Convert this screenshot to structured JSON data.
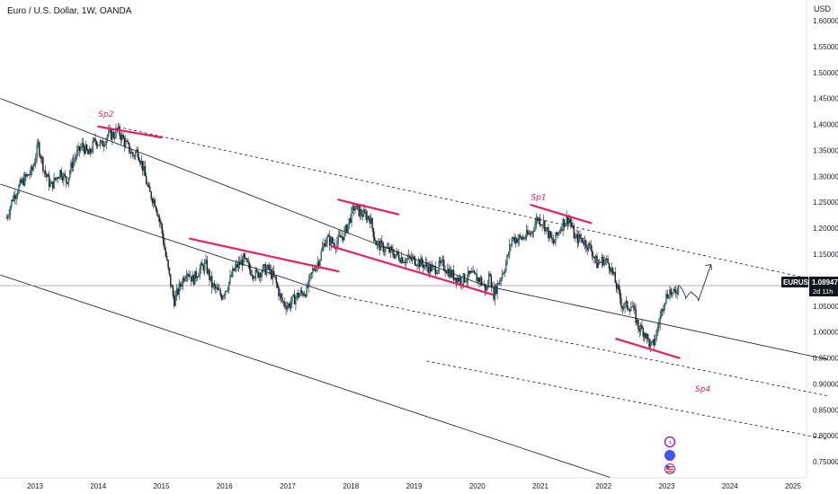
{
  "header": {
    "title": "Euro / U.S. Dollar, 1W, OANDA",
    "unit": "USD"
  },
  "colors": {
    "up": "#131722",
    "down": "#131722",
    "accent": "#e91e63",
    "channel": "#131722"
  },
  "price_tag": {
    "symbol": "EURUSD",
    "value": "1.08947",
    "countdown": "2d 11h"
  },
  "event_icons": [
    "lightning-icon",
    "blue-globe-icon",
    "us-flag-icon"
  ],
  "chart_data": {
    "type": "candlestick",
    "symbol": "EURUSD",
    "interval": "1W",
    "source": "OANDA",
    "y_ticks": [
      "1.60000",
      "1.55000",
      "1.50000",
      "1.45000",
      "1.40000",
      "1.35000",
      "1.30000",
      "1.25000",
      "1.20000",
      "1.15000",
      "1.10000",
      "1.05000",
      "1.00000",
      "0.95000",
      "0.90000",
      "0.85000",
      "0.80000",
      "0.75000"
    ],
    "ylim": [
      0.72,
      1.62
    ],
    "x_ticks": [
      "2013",
      "2014",
      "2015",
      "2016",
      "2017",
      "2018",
      "2019",
      "2020",
      "2021",
      "2022",
      "2023",
      "2024",
      "2025"
    ],
    "xlim": [
      2012.45,
      2025.55
    ],
    "current_price": 1.08947,
    "price_path": [
      [
        2012.55,
        1.22
      ],
      [
        2012.65,
        1.26
      ],
      [
        2012.8,
        1.29
      ],
      [
        2012.95,
        1.31
      ],
      [
        2013.05,
        1.36
      ],
      [
        2013.15,
        1.31
      ],
      [
        2013.25,
        1.28
      ],
      [
        2013.4,
        1.31
      ],
      [
        2013.5,
        1.29
      ],
      [
        2013.6,
        1.33
      ],
      [
        2013.75,
        1.36
      ],
      [
        2013.85,
        1.34
      ],
      [
        2013.95,
        1.37
      ],
      [
        2014.05,
        1.36
      ],
      [
        2014.15,
        1.38
      ],
      [
        2014.25,
        1.38
      ],
      [
        2014.3,
        1.39
      ],
      [
        2014.45,
        1.36
      ],
      [
        2014.55,
        1.34
      ],
      [
        2014.62,
        1.35
      ],
      [
        2014.7,
        1.32
      ],
      [
        2014.8,
        1.27
      ],
      [
        2014.9,
        1.25
      ],
      [
        2015.0,
        1.2
      ],
      [
        2015.05,
        1.16
      ],
      [
        2015.12,
        1.11
      ],
      [
        2015.2,
        1.06
      ],
      [
        2015.3,
        1.09
      ],
      [
        2015.4,
        1.12
      ],
      [
        2015.5,
        1.1
      ],
      [
        2015.6,
        1.12
      ],
      [
        2015.7,
        1.13
      ],
      [
        2015.8,
        1.09
      ],
      [
        2015.95,
        1.07
      ],
      [
        2016.05,
        1.09
      ],
      [
        2016.15,
        1.12
      ],
      [
        2016.3,
        1.14
      ],
      [
        2016.4,
        1.12
      ],
      [
        2016.5,
        1.11
      ],
      [
        2016.6,
        1.12
      ],
      [
        2016.7,
        1.12
      ],
      [
        2016.8,
        1.1
      ],
      [
        2016.9,
        1.06
      ],
      [
        2017.0,
        1.05
      ],
      [
        2017.15,
        1.07
      ],
      [
        2017.3,
        1.08
      ],
      [
        2017.4,
        1.12
      ],
      [
        2017.5,
        1.14
      ],
      [
        2017.6,
        1.18
      ],
      [
        2017.75,
        1.17
      ],
      [
        2017.9,
        1.19
      ],
      [
        2018.05,
        1.24
      ],
      [
        2018.15,
        1.23
      ],
      [
        2018.3,
        1.22
      ],
      [
        2018.4,
        1.17
      ],
      [
        2018.55,
        1.16
      ],
      [
        2018.7,
        1.15
      ],
      [
        2018.85,
        1.14
      ],
      [
        2019.0,
        1.14
      ],
      [
        2019.15,
        1.13
      ],
      [
        2019.3,
        1.12
      ],
      [
        2019.45,
        1.13
      ],
      [
        2019.6,
        1.11
      ],
      [
        2019.75,
        1.1
      ],
      [
        2019.9,
        1.11
      ],
      [
        2020.05,
        1.1
      ],
      [
        2020.15,
        1.08
      ],
      [
        2020.2,
        1.12
      ],
      [
        2020.25,
        1.07
      ],
      [
        2020.35,
        1.1
      ],
      [
        2020.45,
        1.13
      ],
      [
        2020.55,
        1.18
      ],
      [
        2020.7,
        1.18
      ],
      [
        2020.85,
        1.19
      ],
      [
        2020.95,
        1.22
      ],
      [
        2021.05,
        1.21
      ],
      [
        2021.2,
        1.17
      ],
      [
        2021.35,
        1.21
      ],
      [
        2021.45,
        1.22
      ],
      [
        2021.55,
        1.18
      ],
      [
        2021.65,
        1.18
      ],
      [
        2021.8,
        1.16
      ],
      [
        2021.9,
        1.13
      ],
      [
        2022.0,
        1.14
      ],
      [
        2022.1,
        1.13
      ],
      [
        2022.2,
        1.09
      ],
      [
        2022.3,
        1.05
      ],
      [
        2022.45,
        1.05
      ],
      [
        2022.55,
        1.01
      ],
      [
        2022.65,
        1.0
      ],
      [
        2022.75,
        0.97
      ],
      [
        2022.8,
        0.98
      ],
      [
        2022.9,
        1.03
      ],
      [
        2022.95,
        1.06
      ],
      [
        2023.05,
        1.08
      ],
      [
        2023.1,
        1.07
      ],
      [
        2023.2,
        1.09
      ]
    ],
    "projection_path": [
      [
        2023.2,
        1.09
      ],
      [
        2023.3,
        1.065
      ],
      [
        2023.4,
        1.075
      ],
      [
        2023.5,
        1.06
      ],
      [
        2023.7,
        1.13
      ]
    ],
    "channel_lines": [
      {
        "p1": [
          2012.45,
          1.45
        ],
        "p2": [
          2020.1,
          1.09
        ],
        "style": "solid"
      },
      {
        "p1": [
          2020.1,
          1.09
        ],
        "p2": [
          2025.55,
          0.947
        ],
        "style": "solid"
      },
      {
        "p1": [
          2014.4,
          1.393
        ],
        "p2": [
          2025.55,
          1.095
        ],
        "style": "dashed"
      },
      {
        "p1": [
          2012.45,
          1.285
        ],
        "p2": [
          2017.8,
          1.07
        ],
        "style": "solid"
      },
      {
        "p1": [
          2017.8,
          1.07
        ],
        "p2": [
          2025.55,
          0.877
        ],
        "style": "dashed"
      },
      {
        "p1": [
          2012.45,
          1.11
        ],
        "p2": [
          2022.1,
          0.72
        ],
        "style": "solid"
      },
      {
        "p1": [
          2019.2,
          0.944
        ],
        "p2": [
          2025.55,
          0.793
        ],
        "style": "dashed"
      }
    ],
    "sp_lines": [
      {
        "p1": [
          2014.0,
          1.396
        ],
        "p2": [
          2015.0,
          1.375
        ]
      },
      {
        "p1": [
          2015.45,
          1.18
        ],
        "p2": [
          2017.8,
          1.117
        ]
      },
      {
        "p1": [
          2017.8,
          1.255
        ],
        "p2": [
          2018.75,
          1.227
        ]
      },
      {
        "p1": [
          2017.7,
          1.165
        ],
        "p2": [
          2020.25,
          1.072
        ]
      },
      {
        "p1": [
          2020.85,
          1.245
        ],
        "p2": [
          2021.8,
          1.21
        ]
      },
      {
        "p1": [
          2022.2,
          0.987
        ],
        "p2": [
          2023.2,
          0.95
        ]
      }
    ],
    "annotations": [
      {
        "text": "Sp2",
        "x": 2014.0,
        "y": 1.415
      },
      {
        "text": "Sp1",
        "x": 2020.85,
        "y": 1.255
      },
      {
        "text": "Sp4",
        "x": 2023.45,
        "y": 0.885
      }
    ],
    "grid": false
  }
}
